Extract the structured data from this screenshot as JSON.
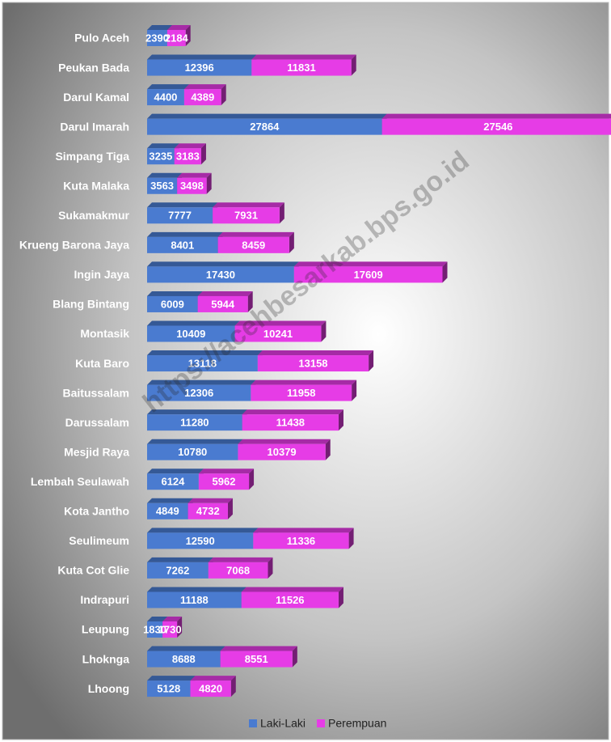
{
  "chart_data": {
    "type": "bar",
    "stacked": true,
    "orientation": "horizontal",
    "watermark": "https://acehbesarkab.bps.go.id",
    "categories": [
      "Pulo Aceh",
      "Peukan Bada",
      "Darul Kamal",
      "Darul Imarah",
      "Simpang Tiga",
      "Kuta Malaka",
      "Sukamakmur",
      "Krueng Barona Jaya",
      "Ingin Jaya",
      "Blang Bintang",
      "Montasik",
      "Kuta Baro",
      "Baitussalam",
      "Darussalam",
      "Mesjid Raya",
      "Lembah Seulawah",
      "Kota Jantho",
      "Seulimeum",
      "Kuta Cot Glie",
      "Indrapuri",
      "Leupung",
      "Lhoknga",
      "Lhoong"
    ],
    "series": [
      {
        "name": "Laki-Laki",
        "color": "#4a7bd0",
        "values": [
          2390,
          12396,
          4400,
          27864,
          3235,
          3563,
          7777,
          8401,
          17430,
          6009,
          10409,
          13118,
          12306,
          11280,
          10780,
          6124,
          4849,
          12590,
          7262,
          11188,
          1830,
          8688,
          5128
        ]
      },
      {
        "name": "Perempuan",
        "color": "#e63ce6",
        "values": [
          2184,
          11831,
          4389,
          27546,
          3183,
          3498,
          7931,
          8459,
          17609,
          5944,
          10241,
          13158,
          11958,
          11438,
          10379,
          5962,
          4732,
          11336,
          7068,
          11526,
          1730,
          8551,
          4820
        ]
      }
    ],
    "legend": "bottom"
  }
}
